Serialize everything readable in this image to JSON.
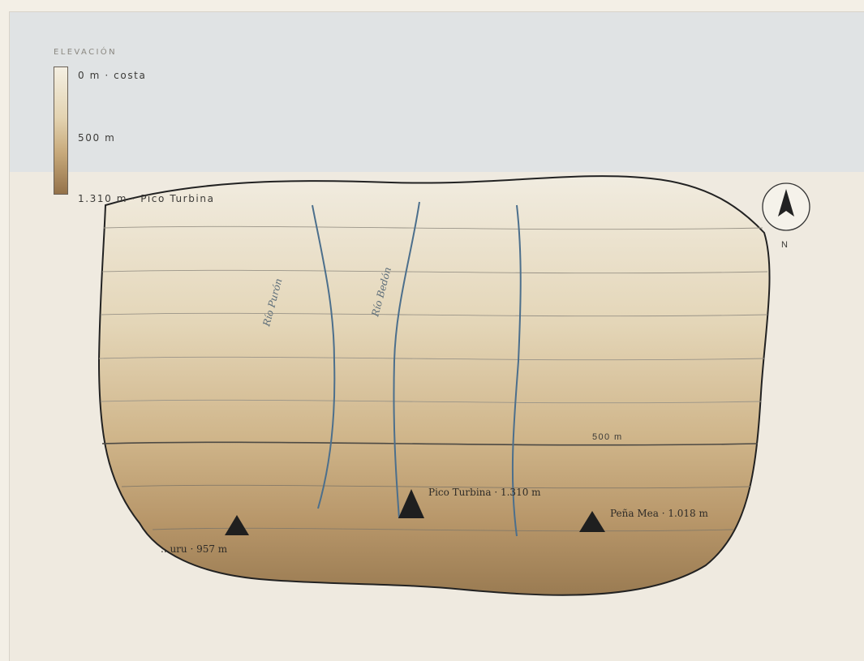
{
  "legend": {
    "title": "ELEVACIÓN",
    "low_label": "0 m · costa",
    "mid_label": "500 m",
    "high_label": "1.310 m · Pico Turbina"
  },
  "rivers": [
    {
      "name": "Río Purón"
    },
    {
      "name": "Río Bedón"
    },
    {
      "name": ""
    }
  ],
  "peaks": [
    {
      "label": "...uru · 957 m",
      "elevation_m": 957
    },
    {
      "label": "Pico Turbina · 1.310 m",
      "elevation_m": 1310
    },
    {
      "label": "Peña Mea · 1.018 m",
      "elevation_m": 1018
    }
  ],
  "contours": {
    "major_label": "500 m"
  },
  "compass": {
    "label": "N"
  },
  "colors": {
    "sea": "#e0e3e4",
    "land_low": "#f1ece0",
    "land_high": "#9a7b52",
    "river": "#4c6f8c",
    "outline": "#222222"
  }
}
